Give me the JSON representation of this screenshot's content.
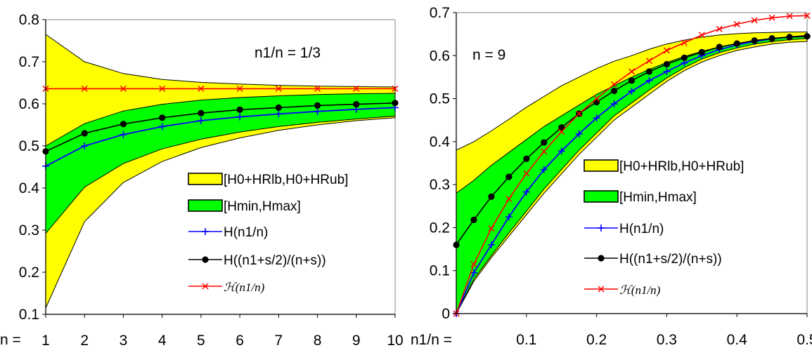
{
  "legend": {
    "band_yellow": "[H0+HRlb,H0+HRub]",
    "band_green": "[Hmin,Hmax]",
    "line_blue": "H(n1/n)",
    "line_black": "H((n1+s/2)/(n+s))",
    "line_red": "ℋ(n1/n)"
  },
  "colors": {
    "yellow": "#FFFF00",
    "green": "#00FF00",
    "blue": "#0000FF",
    "black": "#000000",
    "red": "#FF0000",
    "plot_border": "#999999"
  },
  "chart_data": [
    {
      "type": "line",
      "annotation": "n1/n = 1/3",
      "x_prefix": "n =",
      "x": [
        1,
        2,
        3,
        4,
        5,
        6,
        7,
        8,
        9,
        10
      ],
      "xlim": [
        1,
        10
      ],
      "ylim": [
        0.1,
        0.8
      ],
      "yticks": [
        0.1,
        0.2,
        0.3,
        0.4,
        0.5,
        0.6,
        0.7,
        0.8
      ],
      "xtick_labels": [
        "1",
        "2",
        "3",
        "4",
        "5",
        "6",
        "7",
        "8",
        "9",
        "10"
      ],
      "legend_position": "right",
      "bands": [
        {
          "key": "band_yellow",
          "color": "yellow",
          "low": [
            0.115,
            0.32,
            0.413,
            0.463,
            0.496,
            0.519,
            0.537,
            0.55,
            0.56,
            0.567
          ],
          "high": [
            0.765,
            0.7,
            0.672,
            0.658,
            0.651,
            0.647,
            0.644,
            0.642,
            0.641,
            0.64
          ]
        },
        {
          "key": "band_green",
          "color": "green",
          "low": [
            0.292,
            0.402,
            0.458,
            0.493,
            0.516,
            0.533,
            0.546,
            0.556,
            0.564,
            0.571
          ],
          "high": [
            0.5,
            0.553,
            0.583,
            0.599,
            0.609,
            0.615,
            0.619,
            0.622,
            0.624,
            0.625
          ]
        }
      ],
      "series": [
        {
          "key": "line_blue",
          "color": "blue",
          "marker": "plus",
          "values": [
            0.452,
            0.5,
            0.527,
            0.546,
            0.56,
            0.569,
            0.576,
            0.582,
            0.587,
            0.591
          ]
        },
        {
          "key": "line_black",
          "color": "black",
          "marker": "dot",
          "values": [
            0.487,
            0.53,
            0.552,
            0.567,
            0.578,
            0.586,
            0.591,
            0.596,
            0.599,
            0.602
          ]
        },
        {
          "key": "line_red",
          "color": "red",
          "marker": "x",
          "values": [
            0.636,
            0.636,
            0.636,
            0.636,
            0.636,
            0.636,
            0.636,
            0.636,
            0.636,
            0.636
          ]
        }
      ]
    },
    {
      "type": "line",
      "annotation": "n = 9",
      "x_prefix": "n1/n =",
      "x": [
        0,
        0.025,
        0.05,
        0.075,
        0.1,
        0.125,
        0.15,
        0.175,
        0.2,
        0.225,
        0.25,
        0.275,
        0.3,
        0.325,
        0.35,
        0.375,
        0.4,
        0.425,
        0.45,
        0.475,
        0.5
      ],
      "xlim": [
        0,
        0.5
      ],
      "ylim": [
        0,
        0.7
      ],
      "yticks": [
        0,
        0.1,
        0.2,
        0.3,
        0.4,
        0.5,
        0.6,
        0.7
      ],
      "xticks": [
        0.1,
        0.2,
        0.3,
        0.4,
        0.5
      ],
      "xtick_labels": [
        "0.1",
        "0.2",
        "0.3",
        "0.4",
        "0.5"
      ],
      "legend_position": "right",
      "bands": [
        {
          "key": "band_yellow",
          "color": "yellow",
          "low": [
            0,
            0.075,
            0.13,
            0.18,
            0.23,
            0.28,
            0.325,
            0.37,
            0.41,
            0.45,
            0.48,
            0.51,
            0.54,
            0.565,
            0.585,
            0.6,
            0.612,
            0.62,
            0.627,
            0.631,
            0.633
          ],
          "high": [
            0.38,
            0.4,
            0.425,
            0.452,
            0.48,
            0.505,
            0.53,
            0.55,
            0.57,
            0.587,
            0.6,
            0.615,
            0.627,
            0.636,
            0.643,
            0.648,
            0.651,
            0.653,
            0.654,
            0.655,
            0.655
          ]
        },
        {
          "key": "band_green",
          "color": "green",
          "low": [
            0,
            0.08,
            0.135,
            0.188,
            0.238,
            0.29,
            0.335,
            0.38,
            0.42,
            0.46,
            0.49,
            0.52,
            0.548,
            0.572,
            0.592,
            0.607,
            0.618,
            0.627,
            0.633,
            0.637,
            0.64
          ],
          "high": [
            0.28,
            0.31,
            0.345,
            0.375,
            0.405,
            0.435,
            0.46,
            0.485,
            0.51,
            0.53,
            0.55,
            0.568,
            0.584,
            0.598,
            0.61,
            0.62,
            0.628,
            0.635,
            0.64,
            0.644,
            0.647
          ]
        }
      ],
      "series": [
        {
          "key": "line_blue",
          "color": "blue",
          "marker": "plus",
          "values": [
            0,
            0.095,
            0.16,
            0.225,
            0.283,
            0.335,
            0.378,
            0.418,
            0.455,
            0.488,
            0.517,
            0.542,
            0.563,
            0.583,
            0.6,
            0.614,
            0.625,
            0.633,
            0.639,
            0.643,
            0.645
          ]
        },
        {
          "key": "line_black",
          "color": "black",
          "marker": "dot",
          "values": [
            0.16,
            0.218,
            0.272,
            0.318,
            0.36,
            0.398,
            0.433,
            0.465,
            0.492,
            0.518,
            0.542,
            0.563,
            0.58,
            0.595,
            0.608,
            0.62,
            0.628,
            0.635,
            0.64,
            0.643,
            0.645
          ]
        },
        {
          "key": "line_red",
          "color": "red",
          "marker": "x",
          "values": [
            0,
            0.115,
            0.198,
            0.267,
            0.326,
            0.377,
            0.423,
            0.465,
            0.5,
            0.533,
            0.563,
            0.588,
            0.612,
            0.63,
            0.648,
            0.662,
            0.673,
            0.682,
            0.688,
            0.692,
            0.693
          ]
        }
      ]
    }
  ]
}
